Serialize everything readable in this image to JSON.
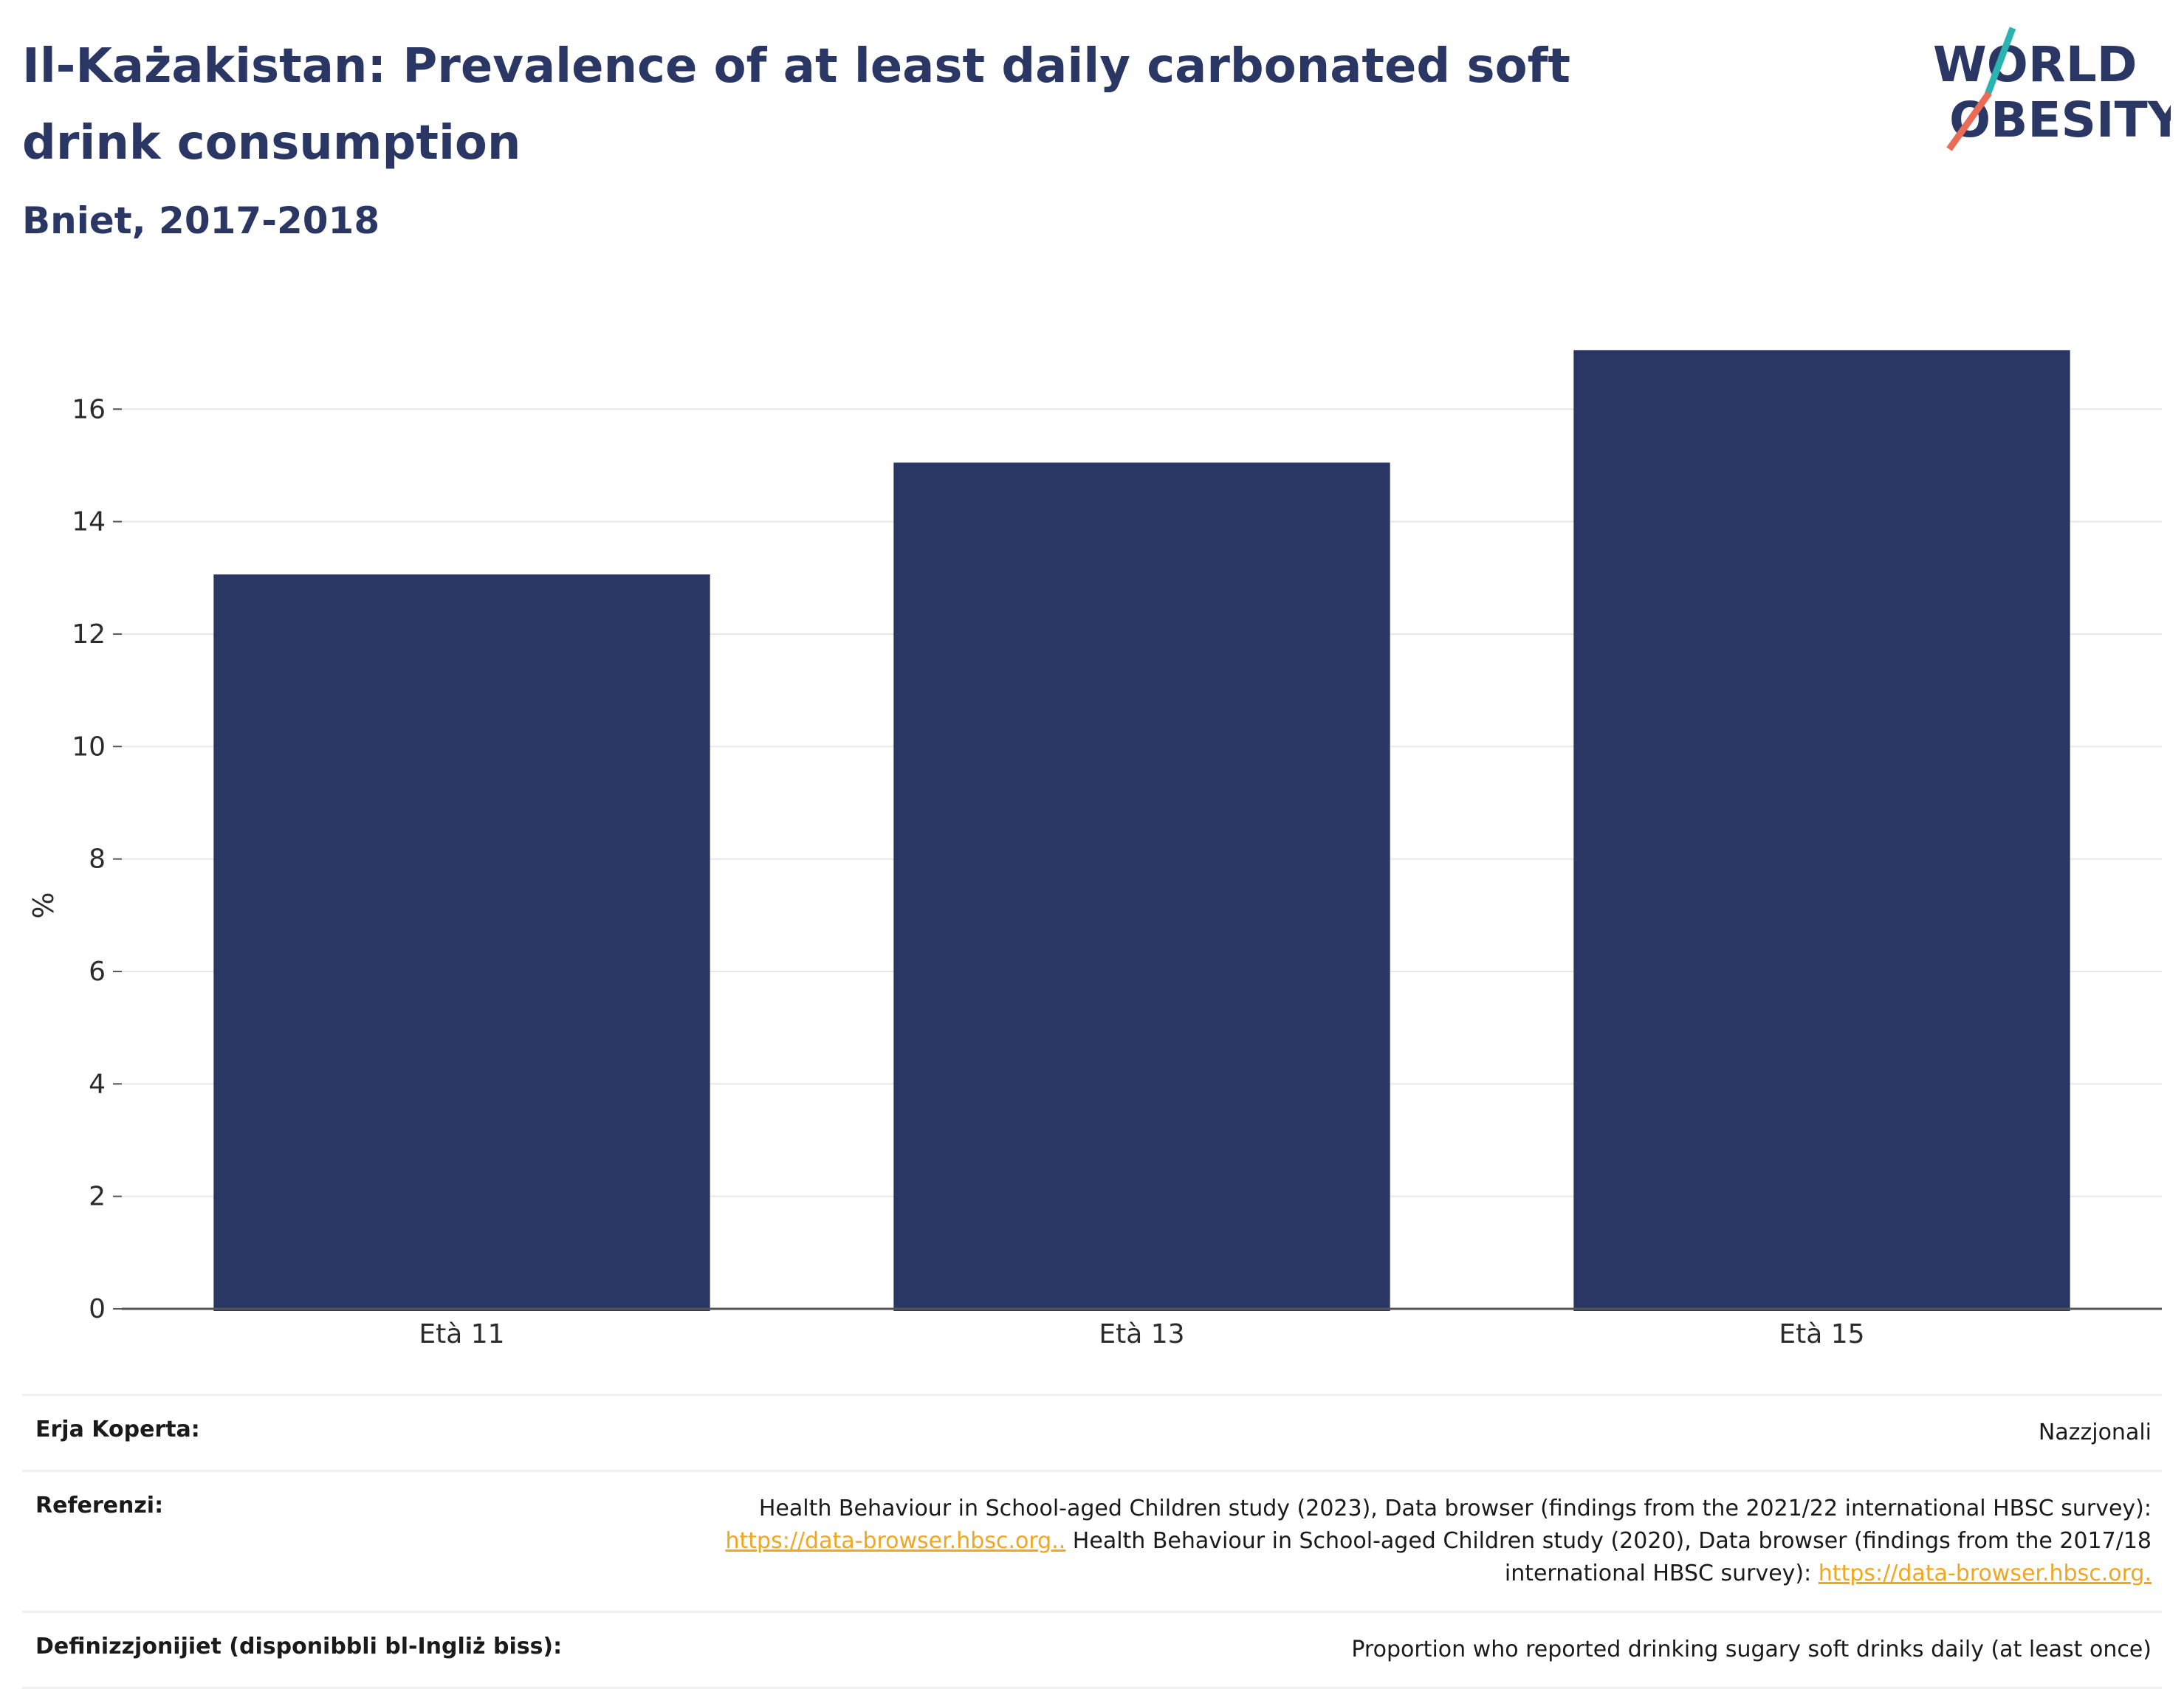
{
  "title": "Il-Każakistan: Prevalence of at least daily carbonated soft drink consumption",
  "subtitle": "Bniet, 2017-2018",
  "logo": {
    "line1": "WORLD",
    "line2": "OBESITY"
  },
  "colors": {
    "bar": "#2a3663",
    "title": "#2a3663",
    "link": "#f0a71f",
    "logo_teal": "#2bb3b1",
    "logo_coral": "#ea6b56"
  },
  "chart_data": {
    "type": "bar",
    "categories": [
      "Età 11",
      "Età 13",
      "Età 15"
    ],
    "values": [
      13.06,
      15.05,
      17.05
    ],
    "ylabel": "%",
    "xlabel": "",
    "ylim": [
      0,
      17.5
    ],
    "yticks": [
      0,
      2,
      4,
      6,
      8,
      10,
      12,
      14,
      16
    ],
    "grid": true,
    "legend": "none"
  },
  "meta": {
    "coverage_label": "Erja Koperta:",
    "coverage_value": "Nazzjonali",
    "references_label": "Referenzi:",
    "ref1_text": "Health Behaviour in School-aged Children study (2023), Data browser (findings from the 2021/22 international HBSC survey):",
    "ref1_link": "https://data-browser.hbsc.org..",
    "ref2_text": " Health Behaviour in School-aged Children study (2020), Data browser (findings from the 2017/18 international HBSC survey):",
    "ref2_link": "https://data-browser.hbsc.org.",
    "definitions_label": "Definizzjonijiet (disponibbli bl-Ingliż biss):",
    "definitions_value": "Proportion who reported drinking sugary soft drinks daily (at least once)"
  }
}
